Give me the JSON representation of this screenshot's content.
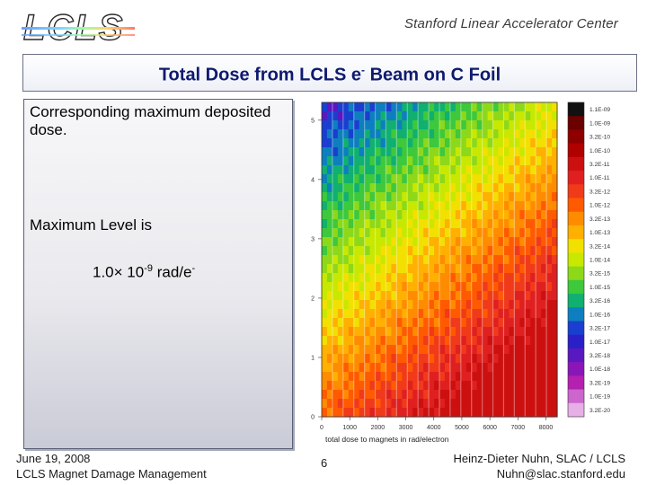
{
  "header": {
    "logo_text": "LCLS",
    "organization": "Stanford Linear Accelerator Center"
  },
  "slide": {
    "title_main": "Total Dose from LCLS e",
    "title_sup": "-",
    "title_end": " Beam on C Foil",
    "paragraph1": "Corresponding maximum deposited dose.",
    "paragraph2": "Maximum Level is",
    "value_prefix": "1.0× 10",
    "value_exponent": "-9",
    "value_unit": " rad/e",
    "value_unit_sup": "-"
  },
  "chart_data": {
    "type": "heatmap",
    "xlabel": "total dose to magnets in rad/electron",
    "x_ticks": [
      "0",
      "1000",
      "2000",
      "3000",
      "4000",
      "5000",
      "6000",
      "7000",
      "8000"
    ],
    "y_ticks": [
      "0",
      "1",
      "2",
      "3",
      "4",
      "5"
    ],
    "xlim": [
      0,
      8400
    ],
    "ylim": [
      0,
      5.3
    ],
    "colorbar_labels": [
      "1.1E-09",
      "1.0E-09",
      "3.2E-10",
      "1.0E-10",
      "3.2E-11",
      "1.0E-11",
      "3.2E-12",
      "1.0E-12",
      "3.2E-13",
      "1.0E-13",
      "3.2E-14",
      "1.0E-14",
      "3.2E-15",
      "1.0E-15",
      "3.2E-16",
      "1.0E-16",
      "3.2E-17",
      "1.0E-17",
      "3.2E-18",
      "1.0E-18",
      "3.2E-19",
      "1.0E-19",
      "3.2E-20"
    ],
    "colorbar_colors": [
      "#111111",
      "#6a0000",
      "#8e0000",
      "#b00000",
      "#cc1010",
      "#e02020",
      "#f03a1a",
      "#ff5a00",
      "#ff8c00",
      "#ffb000",
      "#f2e000",
      "#c8e800",
      "#8ed81a",
      "#3ec83c",
      "#10b070",
      "#0d7fbe",
      "#1a3fd0",
      "#2a20c8",
      "#5a18c0",
      "#8a16b8",
      "#b420b0",
      "#cc66cc",
      "#e6b0e6"
    ],
    "strip_count": 22
  },
  "footer": {
    "date": "June 19, 2008",
    "event": "LCLS Magnet Damage Management",
    "page_number": "6",
    "author": "Heinz-Dieter Nuhn, SLAC / LCLS",
    "email": "Nuhn@slac.stanford.edu"
  }
}
